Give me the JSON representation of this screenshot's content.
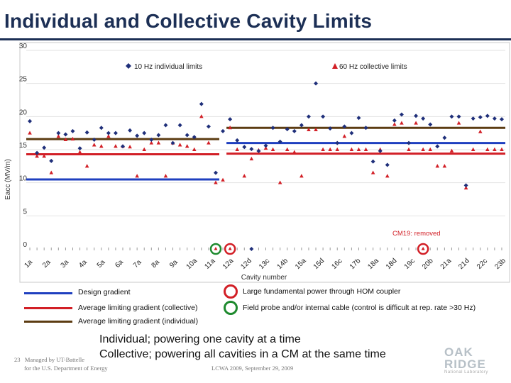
{
  "title": "Individual and Collective Cavity Limits",
  "chart_data": {
    "type": "scatter",
    "ylabel": "Eacc (MV/m)",
    "xlabel": "Cavity number",
    "ylim": [
      0,
      30
    ],
    "yticks": [
      0,
      5,
      10,
      15,
      20,
      25,
      30
    ],
    "x_tick_labels": [
      "1a",
      "2a",
      "3a",
      "4a",
      "5a",
      "6a",
      "7a",
      "8a",
      "9a",
      "10a",
      "11a",
      "12a",
      "12d",
      "13c",
      "14b",
      "15a",
      "15d",
      "16c",
      "17b",
      "18a",
      "18d",
      "19c",
      "20b",
      "21a",
      "21d",
      "22c",
      "23b"
    ],
    "series": [
      {
        "name": "10 Hz individual limits",
        "marker": "diamond",
        "color": "#1f2f7a",
        "points": [
          [
            1,
            19.3
          ],
          [
            2,
            14.5
          ],
          [
            3,
            15.3
          ],
          [
            4,
            13.3
          ],
          [
            5,
            17.5
          ],
          [
            6,
            17.3
          ],
          [
            7,
            17.8
          ],
          [
            8,
            15.2
          ],
          [
            9,
            17.6
          ],
          [
            10,
            16.5
          ],
          [
            11,
            18.3
          ],
          [
            12,
            17.5
          ],
          [
            13,
            17.5
          ],
          [
            14,
            15.5
          ],
          [
            15,
            17.9
          ],
          [
            16,
            17.1
          ],
          [
            17,
            17.5
          ],
          [
            18,
            16.5
          ],
          [
            19,
            17.2
          ],
          [
            20,
            18.7
          ],
          [
            21,
            16.0
          ],
          [
            22,
            18.7
          ],
          [
            23,
            17.2
          ],
          [
            24,
            16.9
          ],
          [
            25,
            21.9
          ],
          [
            26,
            18.5
          ],
          [
            27,
            11.5
          ],
          [
            28,
            17.8
          ],
          [
            29,
            19.6
          ],
          [
            30,
            16.4
          ],
          [
            31,
            15.4
          ],
          [
            32,
            15.1
          ],
          [
            33,
            14.8
          ],
          [
            34,
            15.6
          ],
          [
            35,
            18.3
          ],
          [
            36,
            16.2
          ],
          [
            37,
            18.1
          ],
          [
            38,
            17.8
          ],
          [
            39,
            18.7
          ],
          [
            40,
            20.0
          ],
          [
            41,
            25.0
          ],
          [
            42,
            20.0
          ],
          [
            43,
            18.2
          ],
          [
            44,
            16.0
          ],
          [
            45,
            18.5
          ],
          [
            46,
            17.5
          ],
          [
            47,
            19.8
          ],
          [
            48,
            18.3
          ],
          [
            49,
            13.2
          ],
          [
            50,
            14.8
          ],
          [
            51,
            12.7
          ],
          [
            52,
            19.4
          ],
          [
            53,
            20.3
          ],
          [
            54,
            16.0
          ],
          [
            55,
            20.1
          ],
          [
            56,
            19.7
          ],
          [
            57,
            18.8
          ],
          [
            58,
            15.5
          ],
          [
            59,
            16.8
          ],
          [
            60,
            20.0
          ],
          [
            61,
            20.0
          ],
          [
            62,
            9.6
          ],
          [
            63,
            19.7
          ],
          [
            64,
            19.9
          ],
          [
            65,
            20.1
          ],
          [
            66,
            19.7
          ],
          [
            67,
            19.6
          ]
        ]
      },
      {
        "name": "60 Hz collective limits",
        "marker": "triangle",
        "color": "#d21f26",
        "points": [
          [
            1,
            17.5
          ],
          [
            2,
            14.0
          ],
          [
            3,
            14.0
          ],
          [
            4,
            11.5
          ],
          [
            5,
            17.0
          ],
          [
            6,
            16.5
          ],
          [
            7,
            16.6
          ],
          [
            8,
            14.6
          ],
          [
            9,
            12.5
          ],
          [
            10,
            15.7
          ],
          [
            11,
            15.5
          ],
          [
            12,
            17.0
          ],
          [
            13,
            15.5
          ],
          [
            14,
            15.5
          ],
          [
            15,
            15.4
          ],
          [
            16,
            11.0
          ],
          [
            17,
            15.0
          ],
          [
            18,
            16.0
          ],
          [
            19,
            16.0
          ],
          [
            20,
            11.0
          ],
          [
            21,
            16.0
          ],
          [
            22,
            15.7
          ],
          [
            23,
            15.5
          ],
          [
            24,
            15.0
          ],
          [
            25,
            20.0
          ],
          [
            26,
            16.0
          ],
          [
            27,
            10.0
          ],
          [
            28,
            10.4
          ],
          [
            29,
            18.3
          ],
          [
            30,
            15.0
          ],
          [
            31,
            11.0
          ],
          [
            32,
            13.6
          ],
          [
            33,
            14.9
          ],
          [
            34,
            15.2
          ],
          [
            35,
            15.0
          ],
          [
            36,
            10.0
          ],
          [
            37,
            15.0
          ],
          [
            38,
            14.6
          ],
          [
            39,
            11.0
          ],
          [
            40,
            18.0
          ],
          [
            41,
            18.0
          ],
          [
            42,
            15.0
          ],
          [
            43,
            15.0
          ],
          [
            44,
            15.0
          ],
          [
            45,
            17.0
          ],
          [
            46,
            15.0
          ],
          [
            47,
            15.0
          ],
          [
            48,
            15.0
          ],
          [
            49,
            11.5
          ],
          [
            50,
            15.0
          ],
          [
            51,
            11.0
          ],
          [
            52,
            18.8
          ],
          [
            53,
            19.0
          ],
          [
            54,
            15.0
          ],
          [
            55,
            19.0
          ],
          [
            56,
            15.0
          ],
          [
            57,
            15.0
          ],
          [
            58,
            12.5
          ],
          [
            59,
            12.5
          ],
          [
            60,
            14.8
          ],
          [
            61,
            19.0
          ],
          [
            62,
            9.2
          ],
          [
            63,
            15.0
          ],
          [
            64,
            17.7
          ],
          [
            65,
            15.0
          ],
          [
            66,
            15.0
          ],
          [
            67,
            15.0
          ]
        ]
      }
    ],
    "lines": [
      {
        "name": "Design gradient",
        "color": "#1f3fbf",
        "segments": [
          [
            1,
            27,
            10.5
          ],
          [
            29,
            67,
            16.0
          ]
        ]
      },
      {
        "name": "Average limiting gradient (collective)",
        "color": "#d21f26",
        "segments": [
          [
            1,
            27,
            14.3
          ],
          [
            29,
            67,
            14.4
          ]
        ]
      },
      {
        "name": "Average limiting gradient (individual)",
        "color": "#5c3c12",
        "segments": [
          [
            1,
            27,
            16.6
          ],
          [
            29,
            67,
            18.3
          ]
        ]
      }
    ],
    "removed_cavities": [
      [
        28,
        0
      ],
      [
        29,
        0
      ],
      [
        30,
        0
      ],
      [
        31,
        0
      ],
      [
        32,
        0
      ],
      [
        33,
        0
      ],
      [
        34,
        0
      ],
      [
        35,
        0
      ],
      [
        56,
        0
      ]
    ],
    "marked_cavities": [
      {
        "cavity": 27,
        "meaning": "Field probe and/or internal cable (control is difficult at rep. rate >30 Hz)",
        "color": "#1e8a2e"
      },
      {
        "cavity": 29,
        "meaning": "Large fundamental power through HOM coupler",
        "color": "#d21f26"
      },
      {
        "cavity": 56,
        "meaning": "Large fundamental power through HOM coupler",
        "color": "#d21f26"
      }
    ],
    "annotations": [
      "CM19: removed"
    ]
  },
  "legend": {
    "design": "Design gradient",
    "avg_collective": "Average limiting gradient (collective)",
    "avg_individual": "Average limiting gradient (individual)",
    "hom": "Large fundamental power through HOM coupler",
    "probe": "Field probe and/or internal cable (control is difficult at rep. rate >30 Hz)"
  },
  "note": {
    "line1": "Individual; powering one cavity at a time",
    "line2": "Collective; powering all cavities in a CM at the same time"
  },
  "footer": {
    "slide_number": "23",
    "managed_by": "Managed by UT-Battelle",
    "for_doe": "for the U.S. Department of Energy",
    "conference": "LCWA 2009, September 29, 2009"
  },
  "logo": {
    "line1": "OAK",
    "line2": "RIDGE",
    "line3": "National Laboratory"
  },
  "colors": {
    "title": "#1c2f55",
    "blue_line": "#1f3fbf",
    "red": "#d21f26",
    "brown": "#5c3c12",
    "green": "#1e8a2e",
    "diamond": "#1f2f7a"
  }
}
